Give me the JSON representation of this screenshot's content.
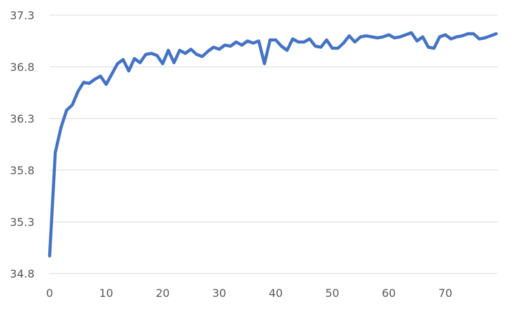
{
  "chart_data": {
    "type": "line",
    "title": "",
    "xlabel": "",
    "ylabel": "",
    "xlim": [
      0,
      79
    ],
    "ylim": [
      34.8,
      37.3
    ],
    "grid": true,
    "legend": "none",
    "xticks": [
      0,
      10,
      20,
      30,
      40,
      50,
      60,
      70
    ],
    "yticks": [
      34.8,
      35.3,
      35.8,
      36.3,
      36.8,
      37.3
    ],
    "series": [
      {
        "color": "#4472C4",
        "x": [
          0,
          1,
          2,
          3,
          4,
          5,
          6,
          7,
          8,
          9,
          10,
          11,
          12,
          13,
          14,
          15,
          16,
          17,
          18,
          19,
          20,
          21,
          22,
          23,
          24,
          25,
          26,
          27,
          28,
          29,
          30,
          31,
          32,
          33,
          34,
          35,
          36,
          37,
          38,
          39,
          40,
          41,
          42,
          43,
          44,
          45,
          46,
          47,
          48,
          49,
          50,
          51,
          52,
          53,
          54,
          55,
          56,
          57,
          58,
          59,
          60,
          61,
          62,
          63,
          64,
          65,
          66,
          67,
          68,
          69,
          70,
          71,
          72,
          73,
          74,
          75,
          76,
          77,
          78,
          79
        ],
        "values": [
          34.97,
          35.97,
          36.21,
          36.38,
          36.43,
          36.56,
          36.65,
          36.64,
          36.68,
          36.71,
          36.63,
          36.73,
          36.83,
          36.87,
          36.76,
          36.88,
          36.84,
          36.92,
          36.93,
          36.91,
          36.83,
          36.96,
          36.84,
          36.96,
          36.93,
          36.97,
          36.92,
          36.9,
          36.95,
          36.99,
          36.97,
          37.01,
          37.0,
          37.04,
          37.01,
          37.05,
          37.03,
          37.05,
          36.83,
          37.06,
          37.06,
          37.0,
          36.96,
          37.07,
          37.04,
          37.04,
          37.07,
          37.0,
          36.99,
          37.06,
          36.98,
          36.98,
          37.03,
          37.1,
          37.04,
          37.09,
          37.1,
          37.09,
          37.08,
          37.09,
          37.11,
          37.08,
          37.09,
          37.11,
          37.13,
          37.05,
          37.09,
          36.99,
          36.98,
          37.09,
          37.11,
          37.07,
          37.09,
          37.1,
          37.12,
          37.12,
          37.07,
          37.08,
          37.1,
          37.12
        ]
      }
    ]
  }
}
